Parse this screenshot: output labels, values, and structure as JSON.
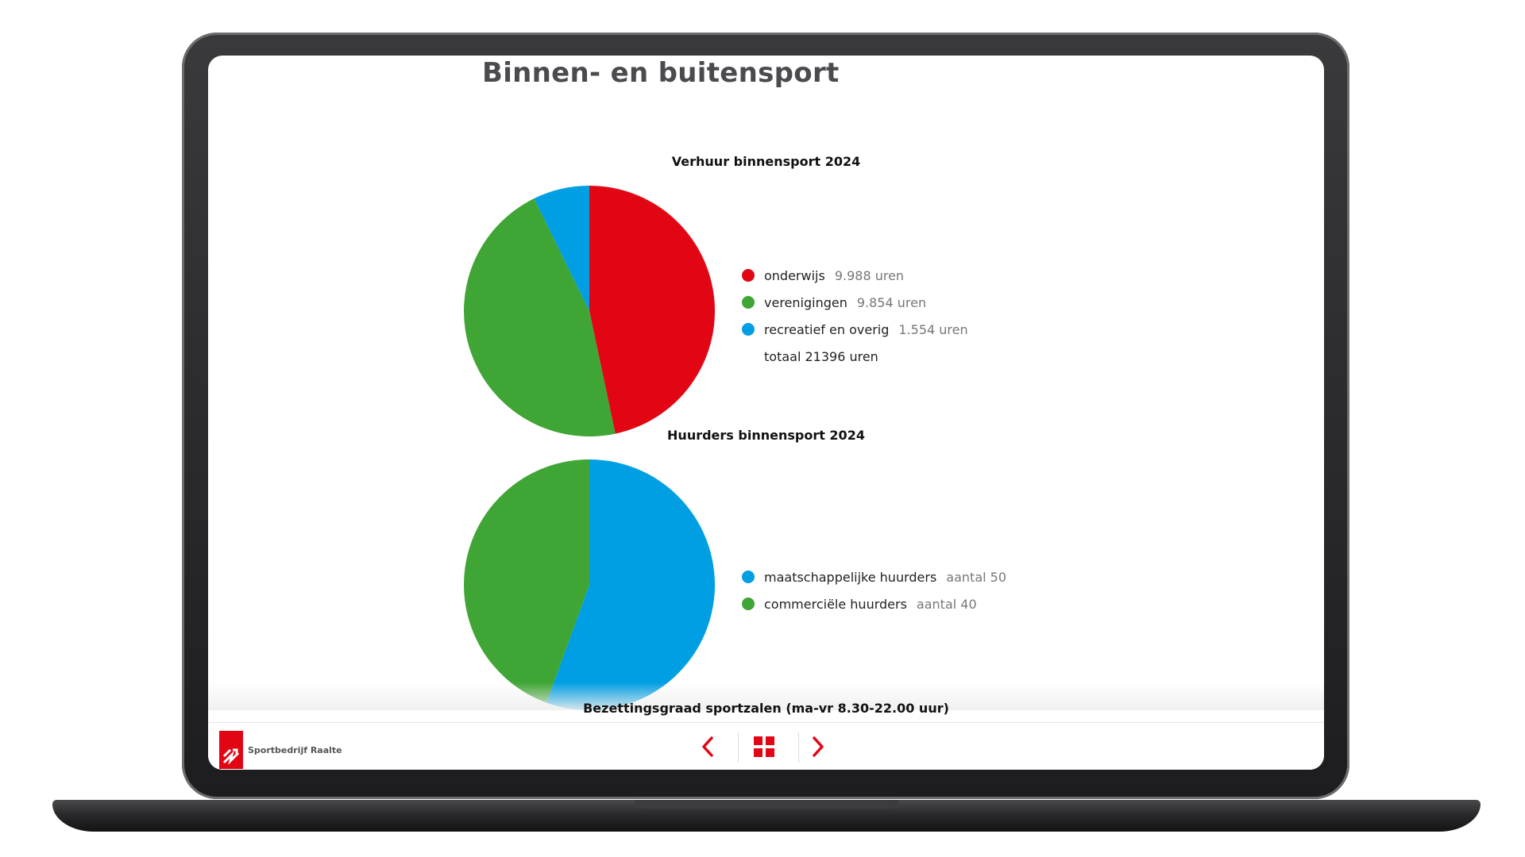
{
  "page_title": "Binnen- en buitensport",
  "colors": {
    "red": "#e20614",
    "green": "#3fa535",
    "blue": "#009fe3"
  },
  "chart_data": [
    {
      "type": "pie",
      "title": "Verhuur binnensport 2024",
      "unit": "uren",
      "slices": [
        {
          "label": "onderwijs",
          "value": 9988,
          "display": "9.988 uren",
          "color": "#e20614"
        },
        {
          "label": "verenigingen",
          "value": 9854,
          "display": "9.854 uren",
          "color": "#3fa535"
        },
        {
          "label": "recreatief en overig",
          "value": 1554,
          "display": "1.554 uren",
          "color": "#009fe3"
        }
      ],
      "total_text": "totaal 21396 uren"
    },
    {
      "type": "pie",
      "title": "Huurders binnensport 2024",
      "slices": [
        {
          "label": "maatschappelijke huurders",
          "value": 50,
          "display": "aantal 50",
          "color": "#009fe3"
        },
        {
          "label": "commerciële huurders",
          "value": 40,
          "display": "aantal 40",
          "color": "#3fa535"
        }
      ]
    },
    {
      "type": "bar",
      "title": "Bezettingsgraad sportzalen (ma-vr 8.30-22.00 uur)"
    }
  ],
  "footer": {
    "logo_text": "Sportbedrijf Raalte",
    "logo_icon": "sportbedrijf-raalte-logo",
    "prev_icon": "chevron-left-icon",
    "grid_icon": "grid-icon",
    "next_icon": "chevron-right-icon"
  }
}
